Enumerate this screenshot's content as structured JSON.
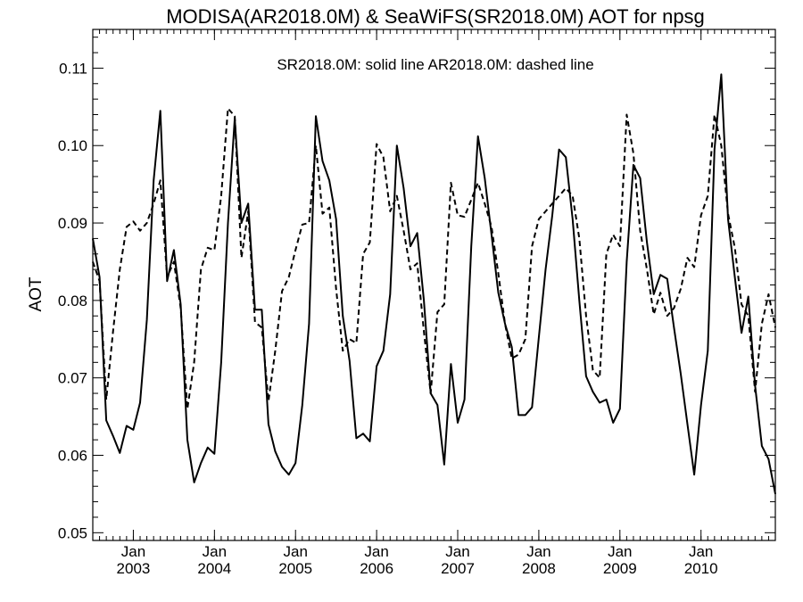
{
  "chart_data": {
    "type": "line",
    "title": "MODISA(AR2018.0M) & SeaWiFS(SR2018.0M)  AOT for npsg",
    "annotation": "SR2018.0M: solid line   AR2018.0M: dashed line",
    "xlabel": "",
    "ylabel": "AOT",
    "xlim": [
      "2002-07",
      "2010-12"
    ],
    "ylim": [
      0.049,
      0.115
    ],
    "yticks": [
      "0.05",
      "0.06",
      "0.07",
      "0.08",
      "0.09",
      "0.10",
      "0.11"
    ],
    "xticks": [
      {
        "month": "Jan",
        "year": "2003",
        "date": "2003-01"
      },
      {
        "month": "Jan",
        "year": "2004",
        "date": "2004-01"
      },
      {
        "month": "Jan",
        "year": "2005",
        "date": "2005-01"
      },
      {
        "month": "Jan",
        "year": "2006",
        "date": "2006-01"
      },
      {
        "month": "Jan",
        "year": "2007",
        "date": "2007-01"
      },
      {
        "month": "Jan",
        "year": "2008",
        "date": "2008-01"
      },
      {
        "month": "Jan",
        "year": "2009",
        "date": "2009-01"
      },
      {
        "month": "Jan",
        "year": "2010",
        "date": "2010-01"
      }
    ],
    "grid": false,
    "legend": "none",
    "series": [
      {
        "name": "SR2018.0M",
        "style": "solid",
        "color": "#000000",
        "x": [
          "2002-07",
          "2002-08",
          "2002-09",
          "2002-10",
          "2002-11",
          "2002-12",
          "2003-01",
          "2003-02",
          "2003-03",
          "2003-04",
          "2003-05",
          "2003-06",
          "2003-07",
          "2003-08",
          "2003-09",
          "2003-10",
          "2003-11",
          "2003-12",
          "2004-01",
          "2004-02",
          "2004-03",
          "2004-04",
          "2004-05",
          "2004-06",
          "2004-07",
          "2004-08",
          "2004-09",
          "2004-10",
          "2004-11",
          "2004-12",
          "2005-01",
          "2005-02",
          "2005-03",
          "2005-04",
          "2005-05",
          "2005-06",
          "2005-07",
          "2005-08",
          "2005-09",
          "2005-10",
          "2005-11",
          "2005-12",
          "2006-01",
          "2006-02",
          "2006-03",
          "2006-04",
          "2006-05",
          "2006-06",
          "2006-07",
          "2006-08",
          "2006-09",
          "2006-10",
          "2006-11",
          "2006-12",
          "2007-01",
          "2007-02",
          "2007-03",
          "2007-04",
          "2007-05",
          "2007-06",
          "2007-07",
          "2007-08",
          "2007-09",
          "2007-10",
          "2007-11",
          "2007-12",
          "2008-01",
          "2008-02",
          "2008-03",
          "2008-04",
          "2008-05",
          "2008-06",
          "2008-07",
          "2008-08",
          "2008-09",
          "2008-10",
          "2008-11",
          "2008-12",
          "2009-01",
          "2009-02",
          "2009-03",
          "2009-04",
          "2009-05",
          "2009-06",
          "2009-07",
          "2009-08",
          "2009-09",
          "2009-10",
          "2009-11",
          "2009-12",
          "2010-01",
          "2010-02",
          "2010-03",
          "2010-04",
          "2010-05",
          "2010-06",
          "2010-07",
          "2010-08",
          "2010-09",
          "2010-10",
          "2010-11",
          "2010-12"
        ],
        "y": [
          0.088,
          0.083,
          0.0645,
          0.0625,
          0.0603,
          0.0638,
          0.0633,
          0.0668,
          0.0775,
          0.0955,
          0.1045,
          0.0825,
          0.0865,
          0.0795,
          0.062,
          0.0565,
          0.059,
          0.061,
          0.0602,
          0.072,
          0.09,
          0.1035,
          0.09,
          0.0925,
          0.0788,
          0.0788,
          0.064,
          0.0605,
          0.0585,
          0.0575,
          0.059,
          0.0665,
          0.077,
          0.1038,
          0.098,
          0.0955,
          0.0905,
          0.078,
          0.0722,
          0.0622,
          0.0628,
          0.0618,
          0.0715,
          0.0735,
          0.0808,
          0.1,
          0.0945,
          0.087,
          0.0887,
          0.08,
          0.068,
          0.0665,
          0.0588,
          0.0718,
          0.0642,
          0.0672,
          0.087,
          0.1012,
          0.0958,
          0.0885,
          0.081,
          0.077,
          0.074,
          0.0652,
          0.0652,
          0.0662,
          0.0752,
          0.084,
          0.091,
          0.0995,
          0.0985,
          0.0905,
          0.08,
          0.0702,
          0.0682,
          0.0668,
          0.0672,
          0.0642,
          0.066,
          0.085,
          0.0975,
          0.0958,
          0.0875,
          0.0808,
          0.0833,
          0.0828,
          0.0765,
          0.0705,
          0.064,
          0.0575,
          0.0665,
          0.0735,
          0.0995,
          0.1092,
          0.0905,
          0.083,
          0.0758,
          0.0805,
          0.069,
          0.0612,
          0.0595,
          0.055
        ]
      },
      {
        "name": "AR2018.0M",
        "style": "dashed",
        "color": "#000000",
        "x": [
          "2002-07",
          "2002-08",
          "2002-09",
          "2002-10",
          "2002-11",
          "2002-12",
          "2003-01",
          "2003-02",
          "2003-03",
          "2003-04",
          "2003-05",
          "2003-06",
          "2003-07",
          "2003-08",
          "2003-09",
          "2003-10",
          "2003-11",
          "2003-12",
          "2004-01",
          "2004-02",
          "2004-03",
          "2004-04",
          "2004-05",
          "2004-06",
          "2004-07",
          "2004-08",
          "2004-09",
          "2004-10",
          "2004-11",
          "2004-12",
          "2005-01",
          "2005-02",
          "2005-03",
          "2005-04",
          "2005-05",
          "2005-06",
          "2005-07",
          "2005-08",
          "2005-09",
          "2005-10",
          "2005-11",
          "2005-12",
          "2006-01",
          "2006-02",
          "2006-03",
          "2006-04",
          "2006-05",
          "2006-06",
          "2006-07",
          "2006-08",
          "2006-09",
          "2006-10",
          "2006-11",
          "2006-12",
          "2007-01",
          "2007-02",
          "2007-03",
          "2007-04",
          "2007-05",
          "2007-06",
          "2007-07",
          "2007-08",
          "2007-09",
          "2007-10",
          "2007-11",
          "2007-12",
          "2008-01",
          "2008-02",
          "2008-03",
          "2008-04",
          "2008-05",
          "2008-06",
          "2008-07",
          "2008-08",
          "2008-09",
          "2008-10",
          "2008-11",
          "2008-12",
          "2009-01",
          "2009-02",
          "2009-03",
          "2009-04",
          "2009-05",
          "2009-06",
          "2009-07",
          "2009-08",
          "2009-09",
          "2009-10",
          "2009-11",
          "2009-12",
          "2010-01",
          "2010-02",
          "2010-03",
          "2010-04",
          "2010-05",
          "2010-06",
          "2010-07",
          "2010-08",
          "2010-09",
          "2010-10",
          "2010-11",
          "2010-12"
        ],
        "y": [
          0.085,
          0.0825,
          0.0672,
          0.076,
          0.084,
          0.0895,
          0.0902,
          0.089,
          0.09,
          0.0925,
          0.0955,
          0.083,
          0.085,
          0.079,
          0.066,
          0.072,
          0.084,
          0.0868,
          0.0865,
          0.0935,
          0.1048,
          0.1038,
          0.0855,
          0.0915,
          0.0772,
          0.0765,
          0.067,
          0.0735,
          0.0812,
          0.083,
          0.0865,
          0.0898,
          0.09,
          0.1,
          0.0912,
          0.092,
          0.0815,
          0.0735,
          0.075,
          0.0745,
          0.086,
          0.0875,
          0.1002,
          0.0985,
          0.0915,
          0.0935,
          0.089,
          0.084,
          0.0848,
          0.076,
          0.068,
          0.0785,
          0.0795,
          0.0952,
          0.091,
          0.0908,
          0.093,
          0.0952,
          0.0925,
          0.0895,
          0.0835,
          0.077,
          0.0725,
          0.073,
          0.075,
          0.087,
          0.0905,
          0.0915,
          0.0925,
          0.0935,
          0.0945,
          0.0935,
          0.088,
          0.078,
          0.071,
          0.07,
          0.086,
          0.0885,
          0.087,
          0.104,
          0.099,
          0.089,
          0.084,
          0.0782,
          0.081,
          0.078,
          0.079,
          0.0815,
          0.0855,
          0.0843,
          0.091,
          0.0935,
          0.104,
          0.1,
          0.0912,
          0.0868,
          0.0795,
          0.078,
          0.0682,
          0.077,
          0.0808,
          0.0765
        ]
      }
    ]
  }
}
